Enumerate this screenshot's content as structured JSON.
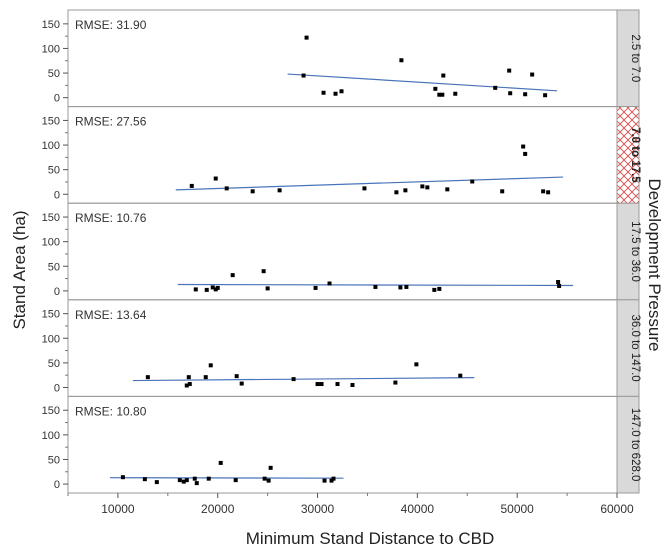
{
  "chart_data": {
    "type": "scatter",
    "xlabel": "Minimum Stand Distance to CBD",
    "ylabel": "Stand Area (ha)",
    "facet_label": "Development Pressure",
    "xlim": [
      5000,
      60000
    ],
    "x_ticks": [
      "10000",
      "20000",
      "30000",
      "40000",
      "50000",
      "60000"
    ],
    "ylim": [
      -10,
      170
    ],
    "y_ticks": [
      "0",
      "50",
      "100",
      "150"
    ],
    "grid": false,
    "colors": {
      "fit_line": "#4a74b9",
      "points": "#000000",
      "strip": "#d9d9d9",
      "hatch": "#e04040"
    },
    "panels": [
      {
        "strip": "2.5 to 7.0",
        "rmse": "RMSE: 31.90",
        "selected": false,
        "points": [
          [
            28600,
            45
          ],
          [
            28900,
            122
          ],
          [
            30600,
            10
          ],
          [
            31800,
            8
          ],
          [
            32400,
            13
          ],
          [
            38400,
            76
          ],
          [
            41800,
            18
          ],
          [
            42200,
            6
          ],
          [
            42500,
            6
          ],
          [
            42600,
            45
          ],
          [
            43800,
            8
          ],
          [
            47800,
            20
          ],
          [
            49200,
            55
          ],
          [
            49300,
            9
          ],
          [
            50800,
            7
          ],
          [
            51500,
            47
          ],
          [
            52800,
            5
          ]
        ],
        "fit": [
          [
            27000,
            48
          ],
          [
            54000,
            14
          ]
        ]
      },
      {
        "strip": "7.0 to 17.5",
        "rmse": "RMSE: 27.56",
        "selected": true,
        "points": [
          [
            17400,
            17
          ],
          [
            19800,
            32
          ],
          [
            20900,
            12
          ],
          [
            23500,
            6
          ],
          [
            26200,
            8
          ],
          [
            34700,
            12
          ],
          [
            37900,
            4
          ],
          [
            38800,
            8
          ],
          [
            40500,
            16
          ],
          [
            41000,
            14
          ],
          [
            43000,
            10
          ],
          [
            45500,
            26
          ],
          [
            48500,
            6
          ],
          [
            50600,
            97
          ],
          [
            50800,
            82
          ],
          [
            52600,
            6
          ],
          [
            53100,
            4
          ]
        ],
        "fit": [
          [
            15800,
            9
          ],
          [
            54600,
            35
          ]
        ]
      },
      {
        "strip": "17.5 to 36.0",
        "rmse": "RMSE: 10.76",
        "selected": false,
        "points": [
          [
            17800,
            3
          ],
          [
            18900,
            2
          ],
          [
            19500,
            7
          ],
          [
            19800,
            3
          ],
          [
            20000,
            6
          ],
          [
            21500,
            32
          ],
          [
            24600,
            40
          ],
          [
            25000,
            5
          ],
          [
            29800,
            6
          ],
          [
            31200,
            15
          ],
          [
            35800,
            8
          ],
          [
            38300,
            7
          ],
          [
            38900,
            8
          ],
          [
            41700,
            2
          ],
          [
            42200,
            4
          ],
          [
            54100,
            18
          ],
          [
            54200,
            10
          ]
        ],
        "fit": [
          [
            16000,
            13
          ],
          [
            55600,
            11
          ]
        ]
      },
      {
        "strip": "36.0 to 147.0",
        "rmse": "RMSE: 13.64",
        "selected": false,
        "points": [
          [
            13000,
            21
          ],
          [
            16900,
            4
          ],
          [
            17100,
            21
          ],
          [
            17200,
            7
          ],
          [
            18800,
            21
          ],
          [
            19300,
            45
          ],
          [
            21900,
            23
          ],
          [
            22400,
            8
          ],
          [
            27600,
            17
          ],
          [
            30000,
            7
          ],
          [
            30400,
            7
          ],
          [
            32000,
            7
          ],
          [
            33500,
            5
          ],
          [
            37800,
            10
          ],
          [
            39900,
            47
          ],
          [
            44300,
            24
          ]
        ],
        "fit": [
          [
            11500,
            14
          ],
          [
            45700,
            20
          ]
        ]
      },
      {
        "strip": "147.0 to 628.0",
        "rmse": "RMSE: 10.80",
        "selected": false,
        "points": [
          [
            10500,
            14
          ],
          [
            12700,
            10
          ],
          [
            13900,
            4
          ],
          [
            16200,
            8
          ],
          [
            16600,
            5
          ],
          [
            16900,
            8
          ],
          [
            17700,
            11
          ],
          [
            17900,
            2
          ],
          [
            19100,
            11
          ],
          [
            20300,
            43
          ],
          [
            21800,
            8
          ],
          [
            24700,
            11
          ],
          [
            25100,
            7
          ],
          [
            25300,
            33
          ],
          [
            30700,
            7
          ],
          [
            31400,
            7
          ],
          [
            31600,
            11
          ]
        ],
        "fit": [
          [
            9200,
            13
          ],
          [
            32600,
            12
          ]
        ]
      }
    ]
  }
}
